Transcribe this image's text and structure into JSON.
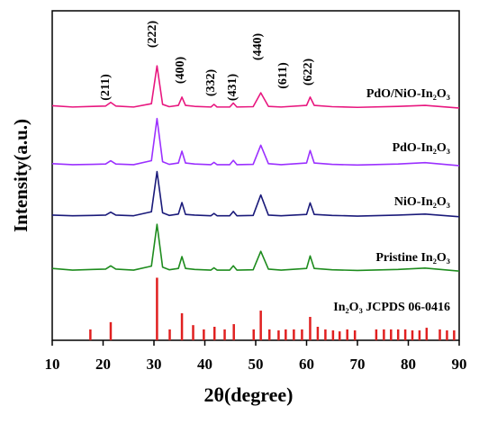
{
  "chart_data": {
    "type": "line",
    "x_label": "2θ(degree)",
    "y_label": "Intensity(a.u.)",
    "xlim": [
      10,
      90
    ],
    "xticks": [
      10,
      20,
      30,
      40,
      50,
      60,
      70,
      80,
      90
    ],
    "ylim": [
      0,
      100
    ],
    "x": [
      10,
      14,
      18,
      20.5,
      21.5,
      22.5,
      26,
      29.5,
      30.6,
      31.7,
      33,
      34.8,
      35.5,
      36.2,
      38,
      41.2,
      41.8,
      42.4,
      44.9,
      45.6,
      46.3,
      49.5,
      51,
      52.5,
      55,
      60,
      60.7,
      61.5,
      65,
      70,
      78,
      83.3,
      90
    ],
    "series": [
      {
        "name": "PdO/NiO-In₂O₃",
        "color": "#e8177f",
        "values": [
          71.2,
          70.8,
          71,
          71.1,
          72.2,
          71.1,
          70.8,
          71.8,
          83.3,
          71.6,
          70.9,
          71.3,
          73.8,
          71.3,
          71,
          70.8,
          71.6,
          70.8,
          70.8,
          72,
          70.8,
          70.9,
          75.1,
          71,
          70.8,
          71.3,
          73.8,
          71.3,
          70.9,
          70.7,
          71,
          71.3,
          70.5
        ]
      },
      {
        "name": "PdO-In₂O₃",
        "color": "#9b30ff",
        "values": [
          53.6,
          53.3,
          53.4,
          53.5,
          54.5,
          53.5,
          53.3,
          54.5,
          67.3,
          54.2,
          53.4,
          53.8,
          57.4,
          53.8,
          53.5,
          53.3,
          54,
          53.3,
          53.3,
          54.6,
          53.3,
          53.4,
          59.2,
          53.6,
          53.3,
          53.8,
          57.6,
          53.8,
          53.4,
          53.2,
          53.5,
          53.9,
          53
        ]
      },
      {
        "name": "NiO-In₂O₃",
        "color": "#1a1a7a",
        "values": [
          38,
          37.8,
          37.9,
          38,
          38.9,
          38,
          37.8,
          39,
          51.2,
          38.7,
          37.9,
          38.3,
          41.8,
          38.2,
          38,
          37.8,
          38.5,
          37.8,
          37.8,
          39.1,
          37.8,
          37.9,
          44.1,
          38,
          37.8,
          38.2,
          41.7,
          38.2,
          37.9,
          37.7,
          38,
          38.3,
          37.5
        ]
      },
      {
        "name": "Pristine In₂O₃",
        "color": "#1e8c1e",
        "values": [
          21.8,
          21.3,
          21.5,
          21.6,
          22.6,
          21.6,
          21.3,
          22.5,
          35.2,
          22.2,
          21.4,
          21.8,
          25.4,
          21.8,
          21.5,
          21.3,
          22,
          21.3,
          21.3,
          22.6,
          21.3,
          21.4,
          27,
          21.6,
          21.3,
          21.8,
          25.6,
          21.8,
          21.4,
          21.2,
          21.5,
          21.9,
          21
        ]
      }
    ],
    "reference": {
      "name": "In₂O₃ JCPDS 06-0416",
      "color": "#e02020",
      "x": [
        17.5,
        21.5,
        30.6,
        33.1,
        35.5,
        37.7,
        39.8,
        41.9,
        43.9,
        45.7,
        49.6,
        51,
        52.7,
        54.5,
        55.9,
        57.5,
        59.1,
        60.7,
        62.2,
        63.7,
        65.2,
        66.5,
        68,
        69.5,
        73.7,
        75.2,
        76.6,
        78,
        79.4,
        80.8,
        82.2,
        83.6,
        86.2,
        87.6,
        89
      ],
      "values": [
        3.3,
        5.5,
        19,
        3.3,
        8.2,
        4.6,
        3.3,
        4.1,
        3.3,
        4.9,
        3.3,
        9,
        3.3,
        3,
        3.3,
        3.3,
        3.3,
        7.1,
        4.1,
        3.3,
        3,
        2.7,
        3.3,
        3,
        3.3,
        3.3,
        3.3,
        3.3,
        3.3,
        3,
        3,
        3.8,
        3.3,
        3,
        3
      ]
    },
    "annotations": [
      "(211)",
      "(222)",
      "(400)",
      "(332)",
      "(431)",
      "(440)",
      "(611)",
      "(622)"
    ]
  }
}
